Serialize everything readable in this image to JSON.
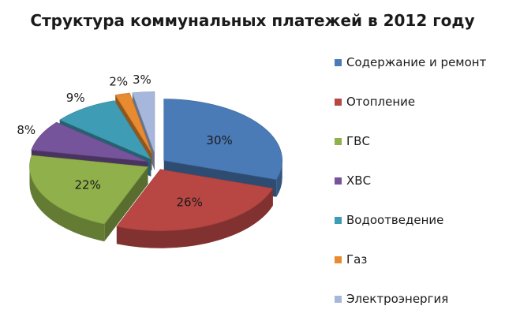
{
  "chart_data": {
    "type": "pie",
    "title": "Структура коммунальных платежей в 2012 году",
    "legend_position": "right",
    "exploded": true,
    "three_d": true,
    "slices": [
      {
        "label": "Содержание и ремонт",
        "value": 30,
        "value_label": "30%",
        "color": "#4a7bb7"
      },
      {
        "label": "Отопление",
        "value": 26,
        "value_label": "26%",
        "color": "#b84744"
      },
      {
        "label": "ГВС",
        "value": 22,
        "value_label": "22%",
        "color": "#8fb04a"
      },
      {
        "label": "ХВС",
        "value": 8,
        "value_label": "8%",
        "color": "#76549b"
      },
      {
        "label": "Водоотведение",
        "value": 9,
        "value_label": "9%",
        "color": "#3e9db4"
      },
      {
        "label": "Газ",
        "value": 2,
        "value_label": "2%",
        "color": "#e88a30"
      },
      {
        "label": "Электроэнергия",
        "value": 3,
        "value_label": "3%",
        "color": "#a7b7dc"
      }
    ]
  }
}
